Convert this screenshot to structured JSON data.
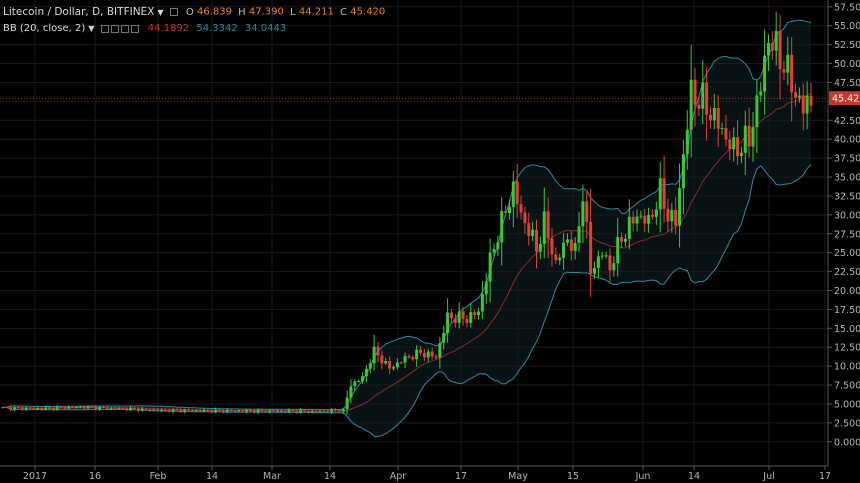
{
  "header": {
    "symbol": "Litecoin / Dollar, D, BITFINEX",
    "open_label": "O",
    "open": "46.839",
    "high_label": "H",
    "high": "47.390",
    "low_label": "L",
    "low": "44.211",
    "close_label": "C",
    "close": "45.420"
  },
  "indicator": {
    "name": "BB (20, close, 2)",
    "middle": "44.1892",
    "upper": "54.3342",
    "lower": "34.0443"
  },
  "colors": {
    "up": "#3dc736",
    "down": "#e0413a",
    "bb_mid": "#8b2b23",
    "bb_band": "#2f8a9e",
    "grid": "#1a1a1a",
    "price_line": "#c0392b",
    "axis_text": "#b5b5b5"
  },
  "chart_data": {
    "type": "candlestick",
    "price_axis_ticks": [
      "0.000",
      "2.500",
      "5.000",
      "7.500",
      "10.000",
      "12.500",
      "15.000",
      "17.500",
      "20.000",
      "22.500",
      "25.000",
      "27.500",
      "30.000",
      "32.500",
      "35.000",
      "37.500",
      "40.000",
      "42.500",
      "45.000",
      "47.500",
      "50.000",
      "52.500",
      "55.000",
      "57.500"
    ],
    "ylim": [
      -3.2,
      58.4
    ],
    "time_axis_labels": [
      "2017",
      "16",
      "Feb",
      "14",
      "Mar",
      "14",
      "Apr",
      "17",
      "May",
      "15",
      "Jun",
      "14",
      "Jul",
      "17"
    ],
    "last_price": "45.420",
    "close_series_knots": [
      [
        0,
        4.5
      ],
      [
        10,
        4.4
      ],
      [
        20,
        4.6
      ],
      [
        40,
        4.2
      ],
      [
        55,
        4.1
      ],
      [
        70,
        4.1
      ],
      [
        80,
        4.0
      ],
      [
        88,
        4.2
      ],
      [
        90,
        7.5
      ],
      [
        93,
        8.5
      ],
      [
        96,
        12
      ],
      [
        100,
        9.7
      ],
      [
        104,
        11
      ],
      [
        108,
        11.8
      ],
      [
        112,
        11.2
      ],
      [
        115,
        16.5
      ],
      [
        120,
        16.3
      ],
      [
        123,
        17.2
      ],
      [
        126,
        24
      ],
      [
        128,
        27.5
      ],
      [
        132,
        33.5
      ],
      [
        134,
        30
      ],
      [
        136,
        28
      ],
      [
        138,
        25.5
      ],
      [
        140,
        29
      ],
      [
        143,
        23.5
      ],
      [
        146,
        27
      ],
      [
        148,
        25
      ],
      [
        150,
        33
      ],
      [
        152,
        22.5
      ],
      [
        155,
        25
      ],
      [
        157,
        23
      ],
      [
        160,
        27
      ],
      [
        164,
        30
      ],
      [
        167,
        29
      ],
      [
        170,
        33
      ],
      [
        172,
        30
      ],
      [
        174,
        29
      ],
      [
        176,
        38
      ],
      [
        178,
        46
      ],
      [
        181,
        45
      ],
      [
        185,
        42
      ],
      [
        189,
        38.5
      ],
      [
        193,
        40
      ],
      [
        196,
        47
      ],
      [
        198,
        53.5
      ],
      [
        202,
        50
      ],
      [
        205,
        46
      ],
      [
        207,
        44
      ],
      [
        209,
        45.4
      ]
    ],
    "series": [
      {
        "name": "BB basis",
        "values_from": "20-period SMA of close"
      },
      {
        "name": "BB upper",
        "values_from": "basis + 2*stdev"
      },
      {
        "name": "BB lower",
        "values_from": "basis - 2*stdev"
      }
    ]
  }
}
